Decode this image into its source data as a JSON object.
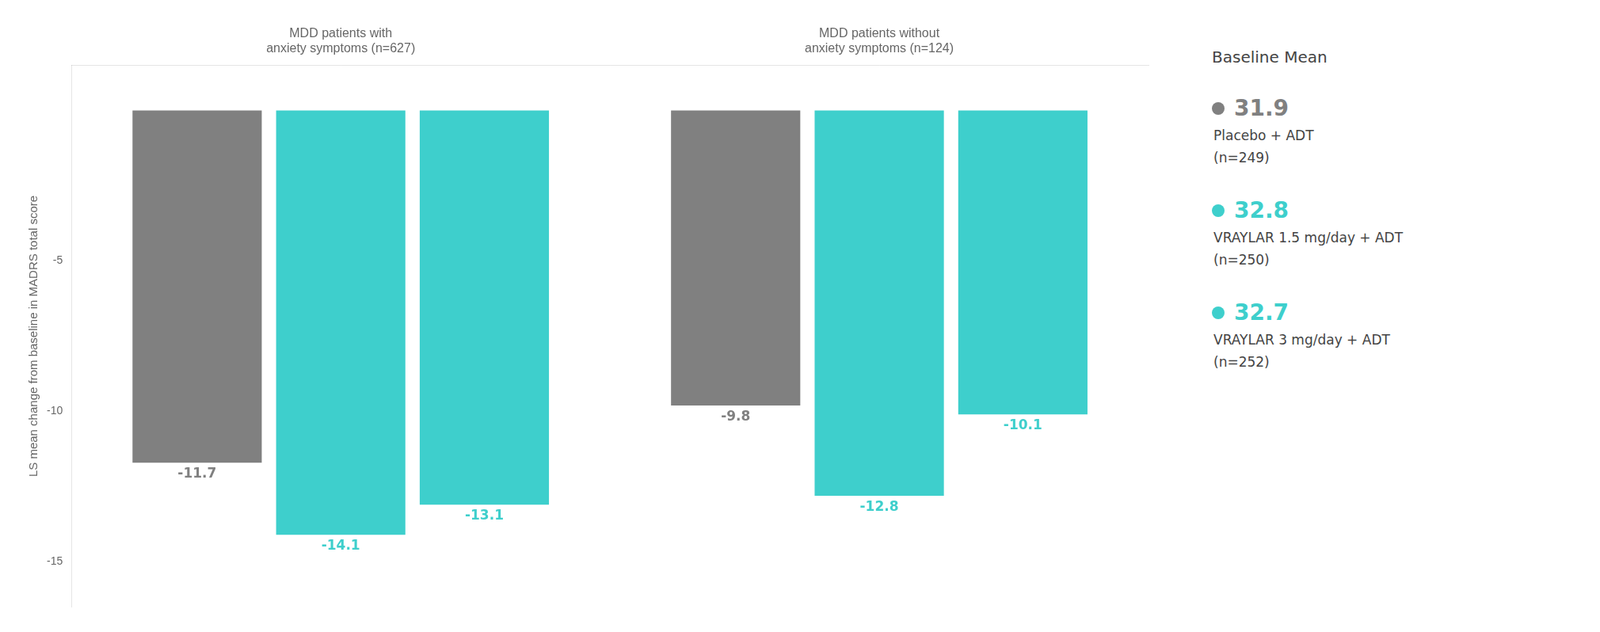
{
  "chart_data": {
    "type": "bar",
    "categories": [
      [
        "MDD patients with",
        "anxiety symptoms (n=627)"
      ],
      [
        "MDD patients without",
        "anxiety symptoms (n=124)"
      ]
    ],
    "ylabel": "LS mean change from baseline in MADRS total score",
    "series": [
      {
        "name": "Placebo + ADT",
        "color": "#808080",
        "values": [
          -11.7,
          -9.8
        ],
        "baseline_mean": 31.9,
        "note": "(n=249)"
      },
      {
        "name": "VRAYLAR 1.5 mg/day + ADT",
        "color": "#3ecfcc",
        "values": [
          -14.1,
          -12.8
        ],
        "baseline_mean": 32.8,
        "note": "(n=250)"
      },
      {
        "name": "VRAYLAR 3 mg/day + ADT",
        "color": "#3ecfcc",
        "values": [
          -13.1,
          -10.1
        ],
        "baseline_mean": 32.7,
        "note": "(n=252)"
      }
    ],
    "legend_title": "Baseline Mean",
    "legend": "right",
    "ylim": [
      -16.5,
      1.5
    ],
    "yticks": [
      -5,
      -10,
      -15
    ],
    "grid": false,
    "data_labels": true
  }
}
